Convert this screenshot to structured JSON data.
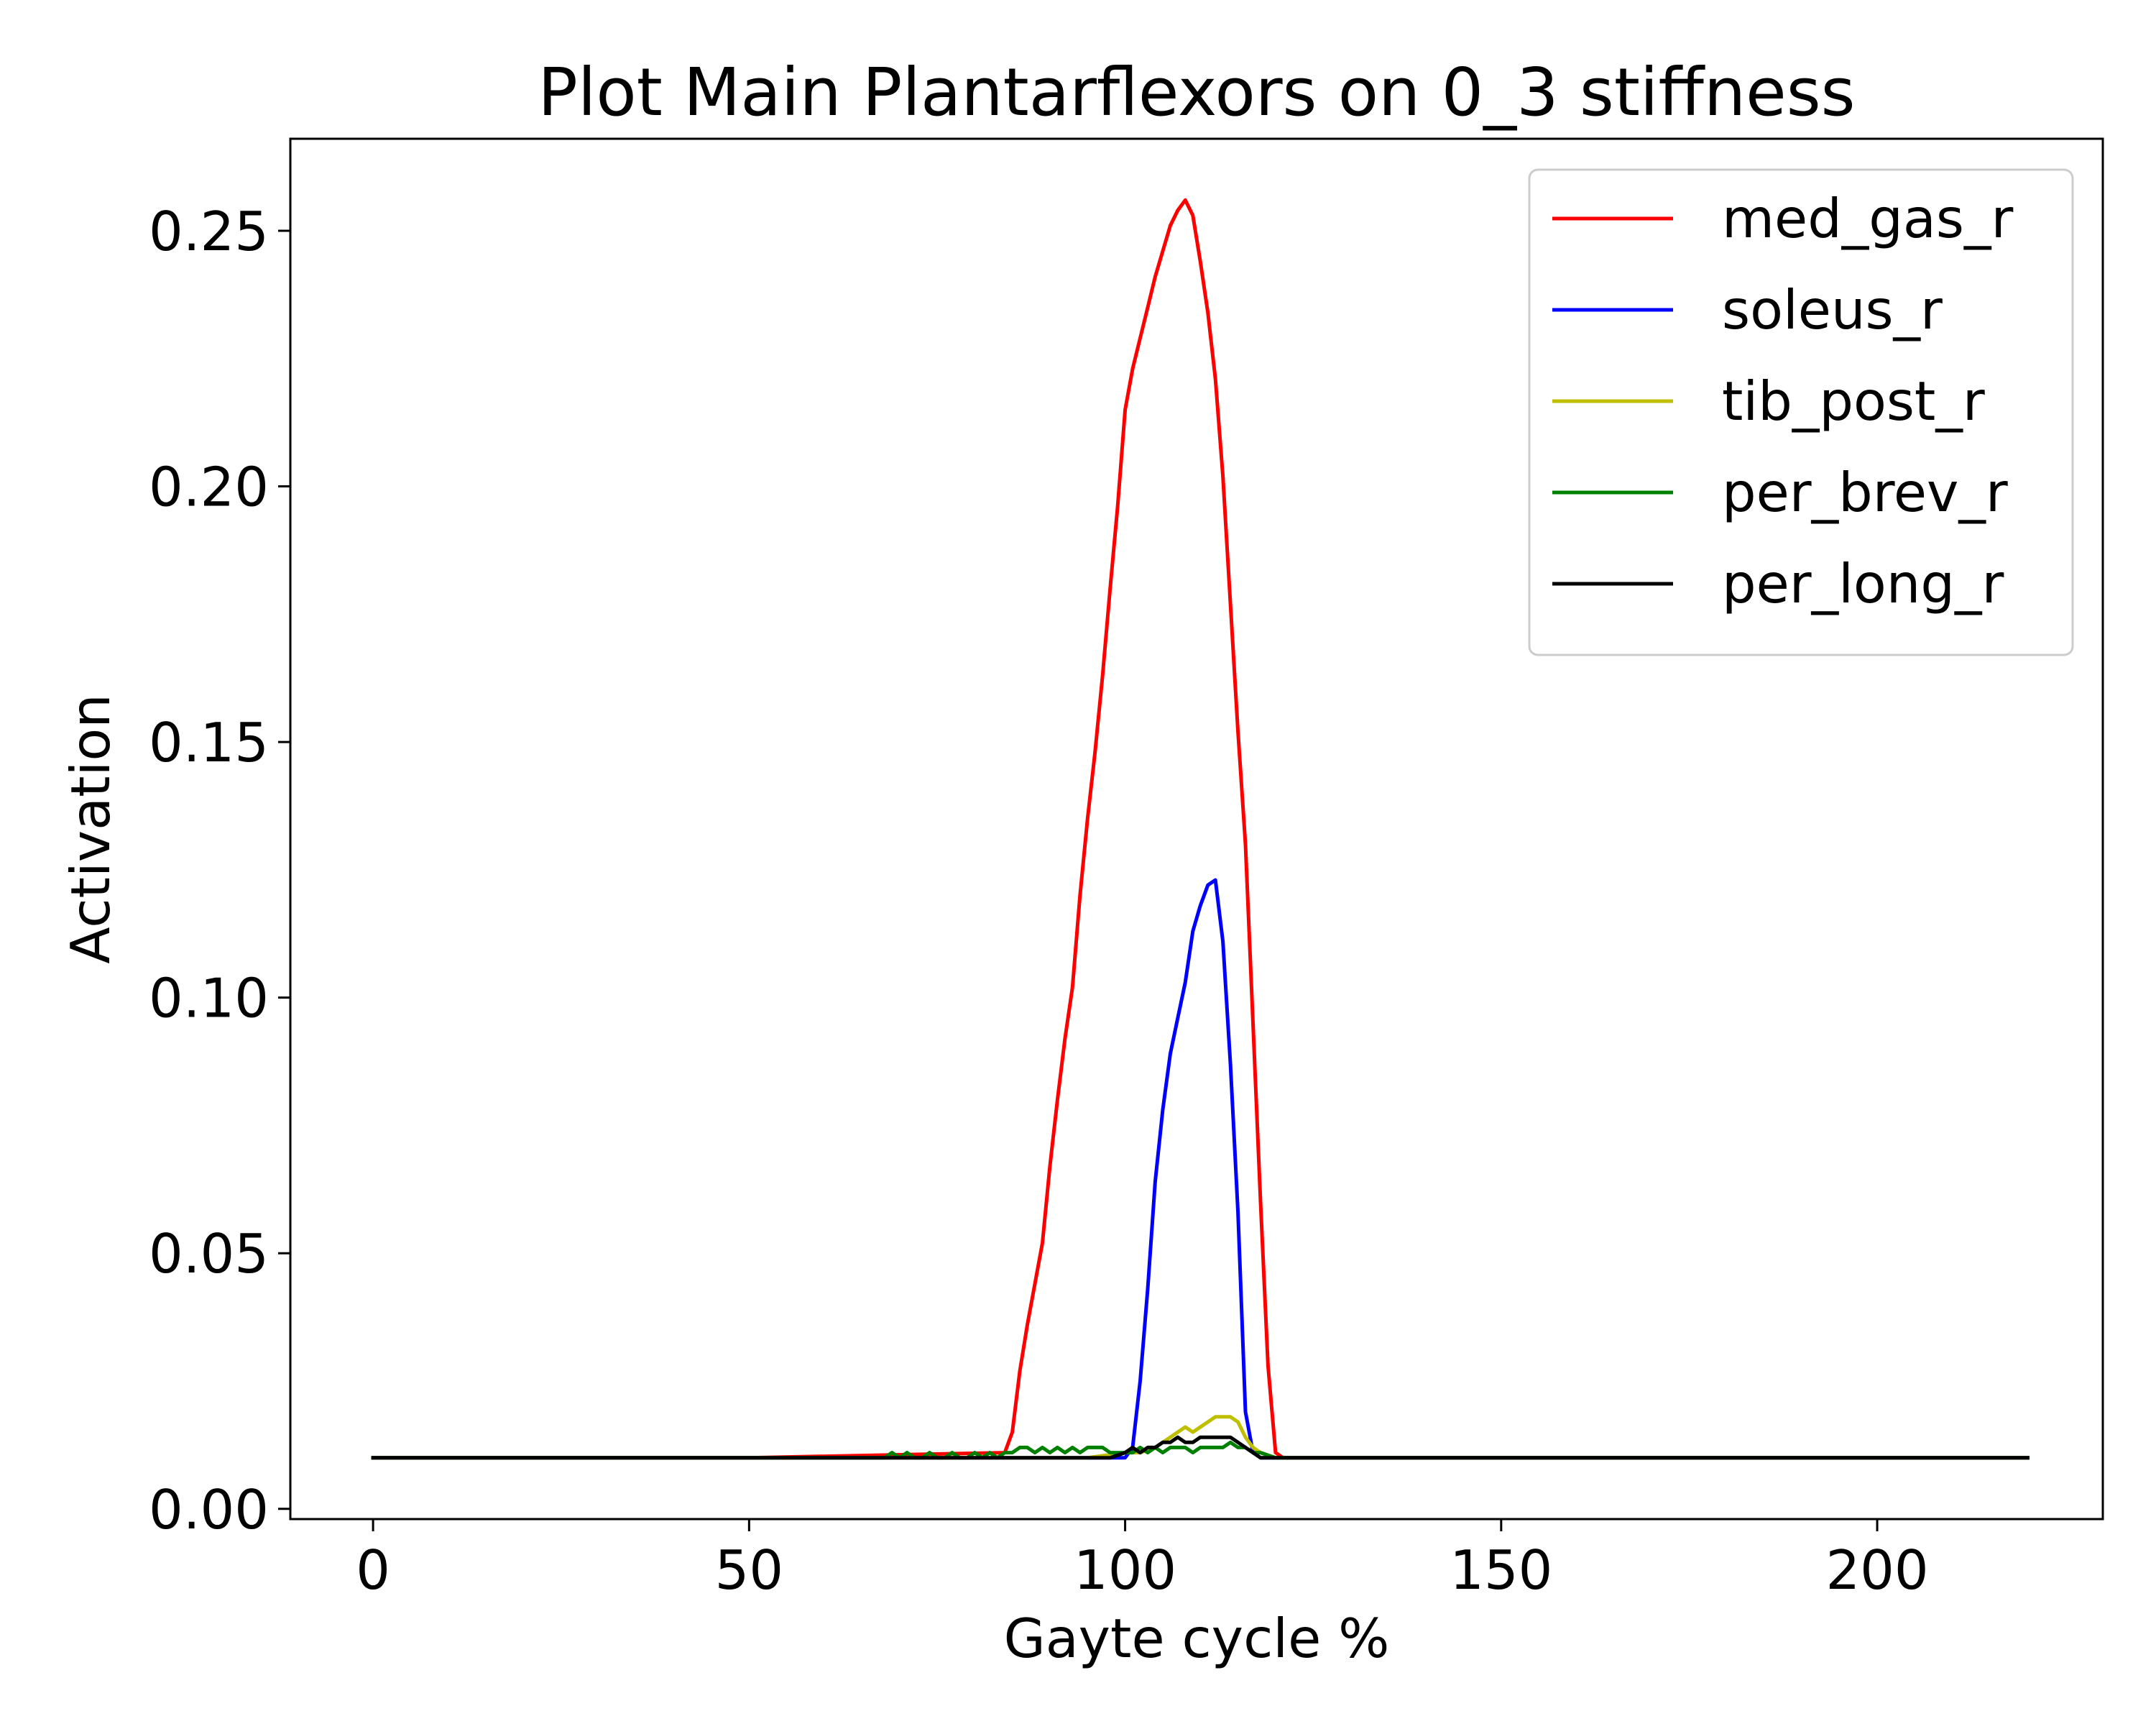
{
  "chart_data": {
    "type": "line",
    "title": "Plot Main Plantarflexors on 0_3 stiffness",
    "xlabel": "Gayte cycle %",
    "ylabel": "Activation",
    "xlim": [
      -11,
      230
    ],
    "ylim": [
      -0.002,
      0.268
    ],
    "xticks": [
      0,
      50,
      100,
      150,
      200
    ],
    "xtick_labels": [
      "0",
      "50",
      "100",
      "150",
      "200"
    ],
    "yticks": [
      0.0,
      0.05,
      0.1,
      0.15,
      0.2,
      0.25
    ],
    "ytick_labels": [
      "0.00",
      "0.05",
      "0.10",
      "0.15",
      "0.20",
      "0.25"
    ],
    "grid": false,
    "legend_position": "upper right",
    "series": [
      {
        "name": "med_gas_r",
        "color": "#ff0000",
        "x": [
          0,
          50,
          84,
          85,
          86,
          87,
          88,
          89,
          90,
          91,
          92,
          93,
          94,
          95,
          96,
          97,
          98,
          99,
          100,
          101,
          102,
          103,
          104,
          105,
          106,
          107,
          108,
          109,
          110,
          111,
          112,
          113,
          114,
          115,
          116,
          117,
          118,
          119,
          120,
          121,
          122,
          125,
          150,
          200,
          220
        ],
        "y": [
          0.01,
          0.01,
          0.011,
          0.015,
          0.027,
          0.036,
          0.044,
          0.052,
          0.067,
          0.08,
          0.092,
          0.102,
          0.12,
          0.135,
          0.148,
          0.163,
          0.18,
          0.196,
          0.215,
          0.223,
          0.229,
          0.235,
          0.241,
          0.246,
          0.251,
          0.254,
          0.256,
          0.253,
          0.244,
          0.234,
          0.221,
          0.202,
          0.177,
          0.152,
          0.13,
          0.095,
          0.06,
          0.028,
          0.011,
          0.01,
          0.01,
          0.01,
          0.01,
          0.01,
          0.01
        ]
      },
      {
        "name": "soleus_r",
        "color": "#0000ff",
        "x": [
          0,
          50,
          100,
          101,
          102,
          103,
          104,
          105,
          106,
          107,
          108,
          109,
          110,
          111,
          112,
          113,
          114,
          115,
          116,
          117,
          118,
          150,
          200,
          220
        ],
        "y": [
          0.01,
          0.01,
          0.01,
          0.012,
          0.025,
          0.043,
          0.064,
          0.078,
          0.089,
          0.096,
          0.103,
          0.113,
          0.118,
          0.122,
          0.123,
          0.111,
          0.087,
          0.058,
          0.019,
          0.011,
          0.01,
          0.01,
          0.01,
          0.01
        ]
      },
      {
        "name": "tib_post_r",
        "color": "#bfbf00",
        "x": [
          0,
          50,
          90,
          95,
          100,
          102,
          104,
          105,
          106,
          107,
          108,
          109,
          110,
          111,
          112,
          113,
          114,
          115,
          116,
          117,
          118,
          120,
          150,
          200,
          220
        ],
        "y": [
          0.01,
          0.01,
          0.01,
          0.01,
          0.011,
          0.011,
          0.012,
          0.013,
          0.014,
          0.015,
          0.016,
          0.015,
          0.016,
          0.017,
          0.018,
          0.018,
          0.018,
          0.017,
          0.014,
          0.012,
          0.011,
          0.01,
          0.01,
          0.01,
          0.01
        ]
      },
      {
        "name": "per_brev_r",
        "color": "#008000",
        "x": [
          0,
          60,
          68,
          69,
          70,
          71,
          72,
          73,
          74,
          75,
          76,
          77,
          78,
          79,
          80,
          81,
          82,
          83,
          84,
          85,
          86,
          87,
          88,
          89,
          90,
          91,
          92,
          93,
          94,
          95,
          96,
          97,
          98,
          99,
          100,
          101,
          102,
          103,
          104,
          105,
          106,
          107,
          108,
          109,
          110,
          111,
          112,
          113,
          114,
          115,
          116,
          117,
          118,
          120,
          122,
          125,
          128,
          130,
          150,
          200,
          220
        ],
        "y": [
          0.01,
          0.01,
          0.01,
          0.011,
          0.01,
          0.011,
          0.01,
          0.01,
          0.011,
          0.01,
          0.01,
          0.011,
          0.01,
          0.01,
          0.011,
          0.01,
          0.011,
          0.01,
          0.011,
          0.011,
          0.012,
          0.012,
          0.011,
          0.012,
          0.011,
          0.012,
          0.011,
          0.012,
          0.011,
          0.012,
          0.012,
          0.012,
          0.011,
          0.011,
          0.011,
          0.011,
          0.012,
          0.011,
          0.012,
          0.011,
          0.012,
          0.012,
          0.012,
          0.011,
          0.012,
          0.012,
          0.012,
          0.012,
          0.013,
          0.012,
          0.012,
          0.011,
          0.011,
          0.01,
          0.01,
          0.01,
          0.01,
          0.01,
          0.01,
          0.01,
          0.01
        ]
      },
      {
        "name": "per_long_r",
        "color": "#000000",
        "x": [
          0,
          50,
          90,
          95,
          98,
          100,
          101,
          102,
          103,
          104,
          105,
          106,
          107,
          108,
          109,
          110,
          111,
          112,
          113,
          114,
          115,
          116,
          117,
          118,
          120,
          150,
          200,
          220
        ],
        "y": [
          0.01,
          0.01,
          0.01,
          0.01,
          0.01,
          0.011,
          0.012,
          0.011,
          0.012,
          0.012,
          0.013,
          0.013,
          0.014,
          0.013,
          0.013,
          0.014,
          0.014,
          0.014,
          0.014,
          0.014,
          0.013,
          0.012,
          0.011,
          0.01,
          0.01,
          0.01,
          0.01,
          0.01
        ]
      }
    ]
  }
}
